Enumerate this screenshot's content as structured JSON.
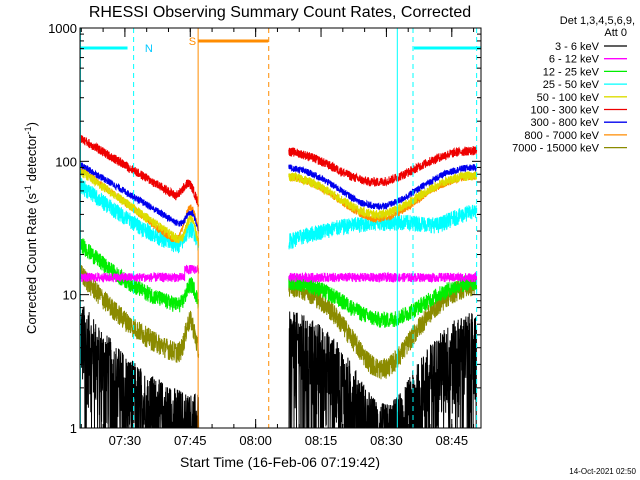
{
  "chart_data": {
    "type": "line",
    "title": "RHESSI Observing Summary Count Rates, Corrected",
    "xlabel": "Start Time (16-Feb-06 07:19:42)",
    "ylabel_main": "Corrected Count Rate (s",
    "ylabel_sup1": "-1",
    "ylabel_mid": " detector",
    "ylabel_sup2": "-1",
    "ylabel_end": ")",
    "yscale": "log",
    "ylim": [
      1,
      1000
    ],
    "xlim_minutes": [
      0,
      92
    ],
    "yticks": [
      {
        "value": 1,
        "label": "1"
      },
      {
        "value": 10,
        "label": "10"
      },
      {
        "value": 100,
        "label": "100"
      },
      {
        "value": 1000,
        "label": "1000"
      }
    ],
    "xticks": [
      {
        "min": 10.3,
        "label": "07:30"
      },
      {
        "min": 25.3,
        "label": "07:45"
      },
      {
        "min": 40.3,
        "label": "08:00"
      },
      {
        "min": 55.3,
        "label": "08:15"
      },
      {
        "min": 70.3,
        "label": "08:30"
      },
      {
        "min": 85.3,
        "label": "08:45"
      }
    ],
    "gaps_minutes": [
      [
        27.3,
        47.8
      ]
    ],
    "legend_header": "Det 1,3,4,5,6,9,",
    "legend_att": "Att 0",
    "series": [
      {
        "name": "3 - 6 keV",
        "color": "#000000",
        "profile": "bkg"
      },
      {
        "name": "6 - 12 keV",
        "color": "#ff00ff",
        "profile": "flat"
      },
      {
        "name": "12 - 25 keV",
        "color": "#00ee00",
        "profile": "mid"
      },
      {
        "name": "25 - 50 keV",
        "color": "#00ffff",
        "profile": "cyan"
      },
      {
        "name": "50 - 100 keV",
        "color": "#dddd00",
        "profile": "yellow"
      },
      {
        "name": "100 - 300 keV",
        "color": "#ee0000",
        "profile": "red"
      },
      {
        "name": "300 - 800 keV",
        "color": "#0000ee",
        "profile": "blue"
      },
      {
        "name": "800 - 7000 keV",
        "color": "#ff8c00",
        "profile": "orange"
      },
      {
        "name": "7000 - 15000 keV",
        "color": "#8b8b00",
        "profile": "olive"
      }
    ],
    "annotations": {
      "night_label": "N",
      "saa_label": "S",
      "night_segments": [
        [
          0,
          10.9
        ],
        [
          76.6,
          92
        ]
      ],
      "saa_segments": [
        [
          27.2,
          43.2
        ]
      ],
      "night_lines": [
        12.3,
        76.4,
        91.0
      ],
      "saa_lines": [
        27.1,
        43.3
      ],
      "solid_cyan_lines": [
        0.1,
        72.8
      ],
      "n_label_pos_min": 15.8,
      "s_label_pos_min": 25.8
    }
  },
  "footer": {
    "date": "14-Oct-2021 02:50"
  }
}
